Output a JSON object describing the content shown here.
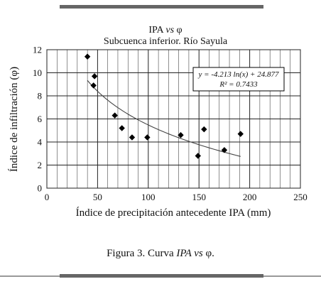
{
  "chart_data": {
    "type": "scatter",
    "title_main": "IPA ",
    "title_vs": "vs",
    "title_phi": " φ",
    "subtitle": "Subcuenca inferior. Río Sayula",
    "xlabel": "Índice de precipitación antecedente IPA (mm)",
    "ylabel": "Índice de infiltración  (φ)",
    "xlim": [
      0,
      250
    ],
    "ylim": [
      0,
      12
    ],
    "xticks": [
      0,
      50,
      100,
      150,
      200,
      250
    ],
    "yticks": [
      0,
      2,
      4,
      6,
      8,
      10,
      12
    ],
    "grid": true,
    "points": [
      {
        "x": 40,
        "y": 11.4
      },
      {
        "x": 47,
        "y": 9.7
      },
      {
        "x": 46,
        "y": 8.9
      },
      {
        "x": 67,
        "y": 6.3
      },
      {
        "x": 74,
        "y": 5.2
      },
      {
        "x": 84,
        "y": 4.4
      },
      {
        "x": 99,
        "y": 4.4
      },
      {
        "x": 132,
        "y": 4.6
      },
      {
        "x": 149,
        "y": 2.8
      },
      {
        "x": 155,
        "y": 5.1
      },
      {
        "x": 175,
        "y": 3.3
      },
      {
        "x": 191,
        "y": 4.7
      }
    ],
    "trendline": {
      "type": "logarithmic",
      "a": -4.213,
      "b": 24.877,
      "x_range": [
        40,
        191
      ],
      "equation": "y = -4.213 ln(x) + 24.877",
      "r2": "R² = 0.7433"
    }
  },
  "caption": {
    "prefix": "Figura 3. Curva ",
    "ipa": "IPA",
    "vs": " vs ",
    "phi": "φ."
  },
  "colors": {
    "marker": "#000000",
    "grid": "#222222",
    "trend": "#444444"
  }
}
